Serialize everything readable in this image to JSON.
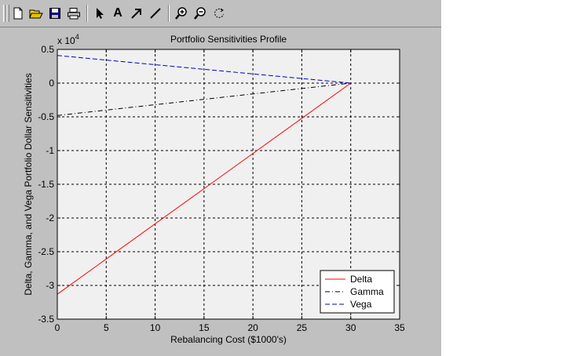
{
  "toolbar": {
    "buttons": [
      {
        "icon": "new-figure-icon"
      },
      {
        "icon": "open-folder-icon"
      },
      {
        "icon": "save-icon"
      },
      {
        "icon": "print-icon"
      },
      {
        "icon": "select-arrow-icon"
      },
      {
        "icon": "insert-text-icon",
        "glyph": "A"
      },
      {
        "icon": "insert-arrow-icon"
      },
      {
        "icon": "insert-line-icon"
      },
      {
        "icon": "zoom-in-icon"
      },
      {
        "icon": "zoom-out-icon"
      },
      {
        "icon": "rotate-3d-icon"
      }
    ]
  },
  "chart_data": {
    "type": "line",
    "title": "Portfolio Sensitivities Profile",
    "xlabel": "Rebalancing Cost ($1000's)",
    "ylabel": "Delta, Gamma, and Vega Portfolio Dollar Sensitivities",
    "y_multiplier": "x 10",
    "y_multiplier_exp": "4",
    "xlim": [
      0,
      35
    ],
    "ylim": [
      -3.5,
      0.5
    ],
    "xticks": [
      "0",
      "5",
      "10",
      "15",
      "20",
      "25",
      "30",
      "35"
    ],
    "yticks": [
      "0.5",
      "0",
      "-0.5",
      "-1",
      "-1.5",
      "-2",
      "-2.5",
      "-3",
      "-3.5"
    ],
    "xtick_values": [
      0,
      5,
      10,
      15,
      20,
      25,
      30,
      35
    ],
    "ytick_values": [
      0.5,
      0,
      -0.5,
      -1,
      -1.5,
      -2,
      -2.5,
      -3,
      -3.5
    ],
    "grid": true,
    "legend_position": "bottom-right",
    "series": [
      {
        "name": "Delta",
        "color": "#ff0000",
        "dash": "solid",
        "x": [
          0,
          30
        ],
        "y": [
          -3.13,
          0.0
        ]
      },
      {
        "name": "Gamma",
        "color": "#000000",
        "dash": "dashdot",
        "x": [
          0,
          30
        ],
        "y": [
          -0.48,
          0.0
        ]
      },
      {
        "name": "Vega",
        "color": "#0000c8",
        "dash": "dashed",
        "x": [
          0,
          30
        ],
        "y": [
          0.41,
          0.0
        ]
      }
    ]
  }
}
